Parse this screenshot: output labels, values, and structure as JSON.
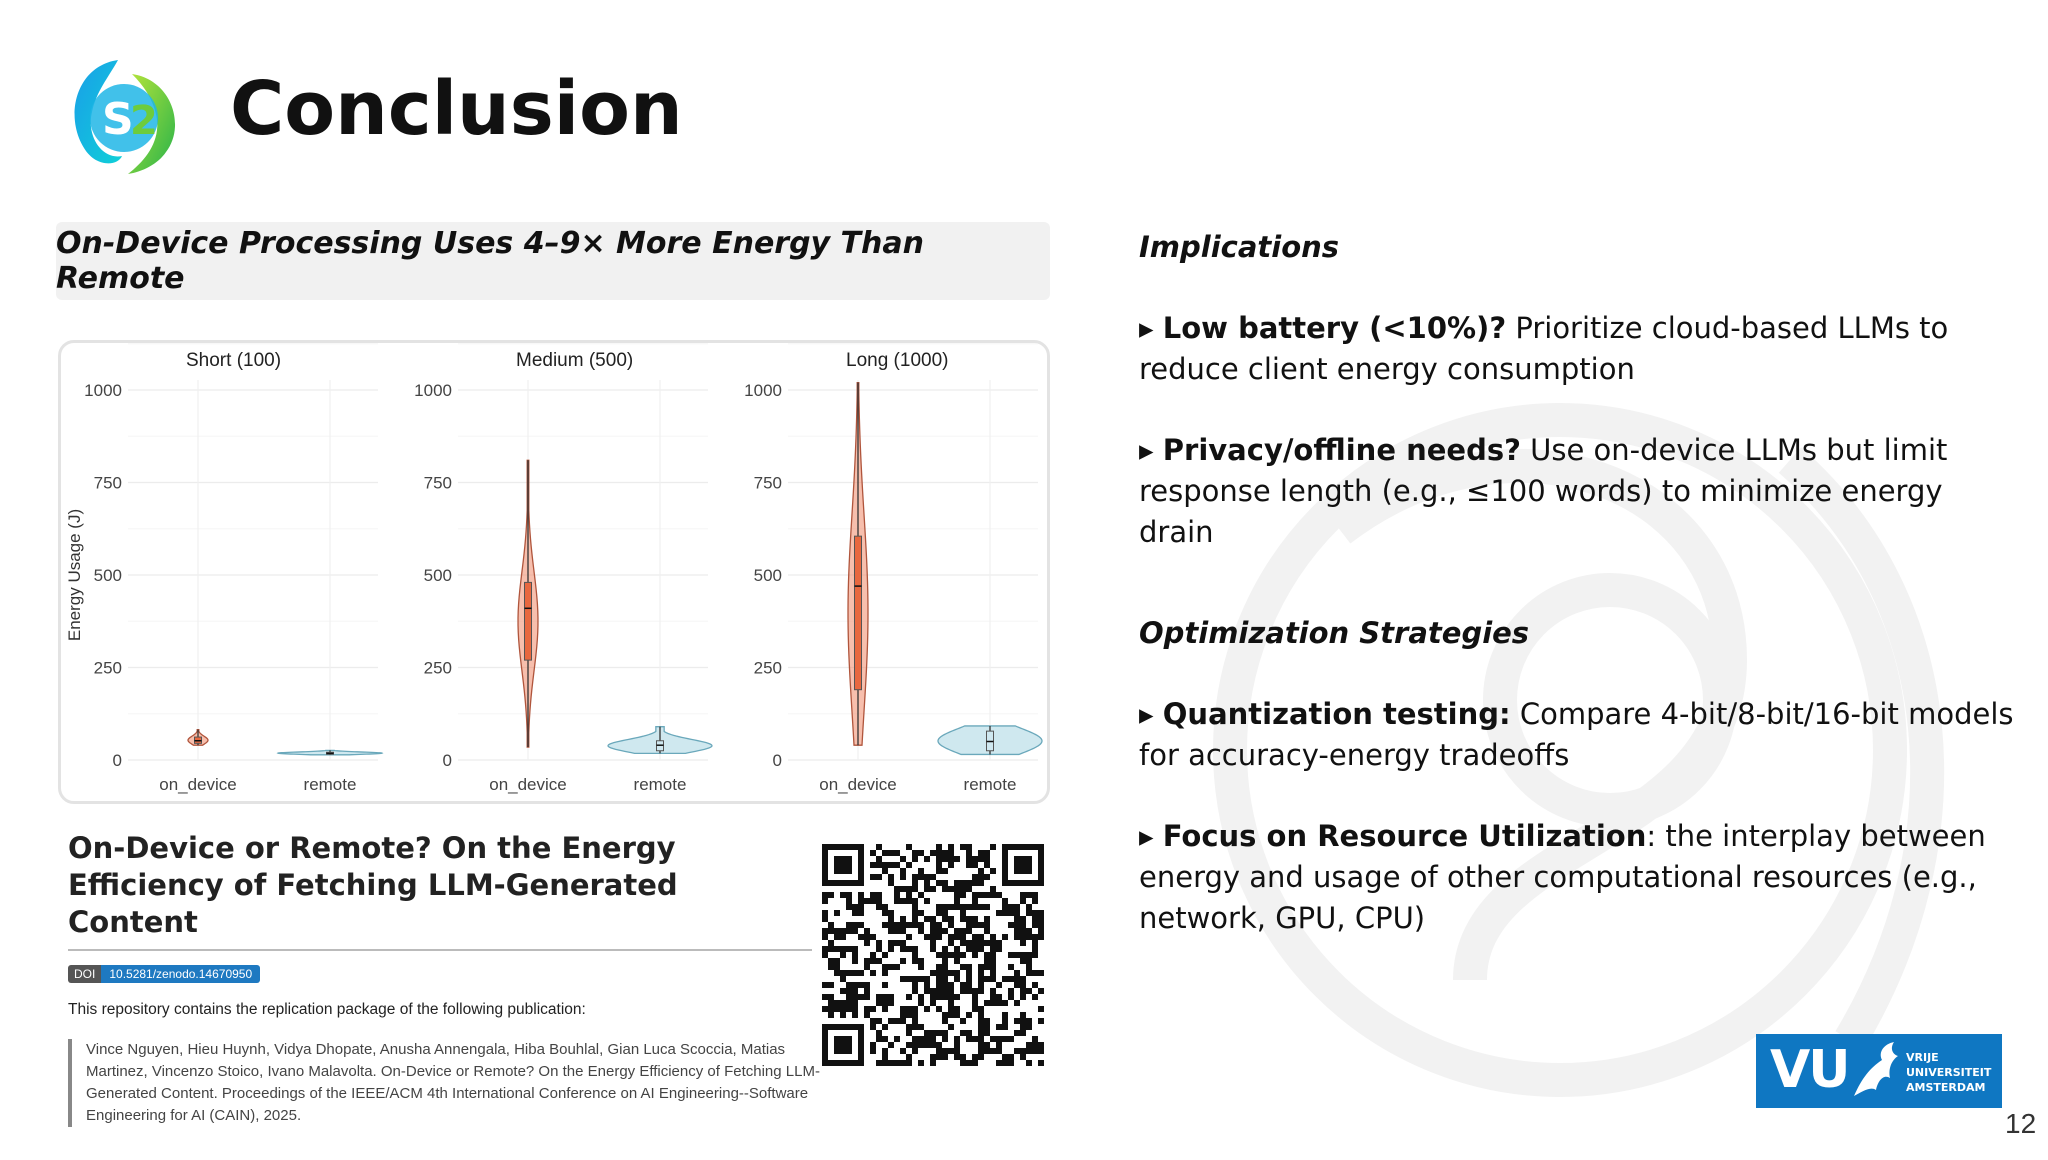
{
  "slide": {
    "title": "Conclusion",
    "headline": "On-Device Processing Uses 4–9× More Energy Than Remote",
    "page_number": "12"
  },
  "chart_data": {
    "type": "violin",
    "ylabel": "Energy Usage (J)",
    "ylim": [
      0,
      1000
    ],
    "yticks": [
      "0",
      "250",
      "500",
      "750",
      "1000"
    ],
    "categories": [
      "on_device",
      "remote"
    ],
    "panels": [
      {
        "name": "Short (100)",
        "groups": [
          {
            "category": "on_device",
            "min": 40,
            "q1": 45,
            "median": 52,
            "q3": 62,
            "max": 82,
            "color": "#f08a6a"
          },
          {
            "category": "remote",
            "min": 14,
            "q1": 16,
            "median": 18,
            "q3": 21,
            "max": 26,
            "color": "#a8d5e2"
          }
        ]
      },
      {
        "name": "Medium (500)",
        "groups": [
          {
            "category": "on_device",
            "min": 35,
            "q1": 270,
            "median": 410,
            "q3": 480,
            "max": 810,
            "color": "#f08a6a"
          },
          {
            "category": "remote",
            "min": 18,
            "q1": 25,
            "median": 40,
            "q3": 52,
            "max": 90,
            "color": "#a8d5e2"
          }
        ]
      },
      {
        "name": "Long (1000)",
        "groups": [
          {
            "category": "on_device",
            "min": 40,
            "q1": 190,
            "median": 470,
            "q3": 605,
            "max": 1020,
            "color": "#f08a6a"
          },
          {
            "category": "remote",
            "min": 15,
            "q1": 25,
            "median": 50,
            "q3": 78,
            "max": 92,
            "color": "#a8d5e2"
          }
        ]
      }
    ]
  },
  "paper": {
    "title": "On-Device or Remote? On the Energy Efficiency of Fetching LLM-Generated Content",
    "doi_key": "DOI",
    "doi_value": "10.5281/zenodo.14670950",
    "repo_text": "This repository contains the replication package of the following publication:",
    "citation": "Vince Nguyen, Hieu Huynh, Vidya Dhopate, Anusha Annengala, Hiba Bouhlal, Gian Luca Scoccia, Matias Martinez, Vincenzo Stoico, Ivano Malavolta. On-Device or Remote? On the Energy Efficiency of Fetching LLM-Generated Content. Proceedings of the IEEE/ACM 4th International Conference on AI Engineering--Software Engineering for AI (CAIN), 2025."
  },
  "implications": {
    "heading": "Implications",
    "items": [
      {
        "bold": "Low battery (<10%)?",
        "text": " Prioritize cloud-based LLMs to reduce client energy consumption"
      },
      {
        "bold": "Privacy/offline needs?",
        "text": " Use on-device LLMs but limit response length (e.g., ≤100 words) to minimize energy drain"
      }
    ]
  },
  "optimization": {
    "heading": "Optimization Strategies",
    "items": [
      {
        "bold": "Quantization testing:",
        "text": " Compare 4-bit/8-bit/16-bit models for accuracy-energy tradeoffs"
      },
      {
        "bold": "Focus on Resource Utilization",
        "text": ": the interplay between energy and usage of other computational resources (e.g., network, GPU, CPU)"
      }
    ]
  },
  "vu_logo": {
    "mark": "VU",
    "line1": "VRIJE",
    "line2": "UNIVERSITEIT",
    "line3": "AMSTERDAM",
    "color": "#0f77c2"
  },
  "colors": {
    "on_device": "#f08a6a",
    "remote": "#a8d5e2",
    "accent_blue": "#0f77c2"
  }
}
